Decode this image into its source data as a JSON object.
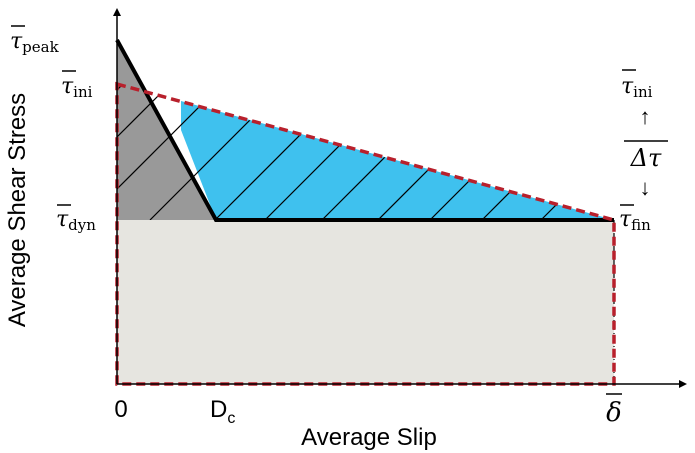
{
  "axes": {
    "xlabel": "Average Slip",
    "ylabel": "Average Shear Stress"
  },
  "ticks": {
    "zero": "0",
    "dc_main": "D",
    "dc_sub": "c",
    "delta": "δ"
  },
  "stress_labels": {
    "tau": "τ",
    "peak_sub": "peak",
    "ini_sub": "ini",
    "dyn_sub": "dyn",
    "fin_sub": "fin",
    "delta_tau": "Δτ",
    "up_arrow": "↑",
    "down_arrow": "↓"
  },
  "colors": {
    "gray_region": "#999999",
    "blue_region": "#3fc1ee",
    "light_region": "#e6e5e0",
    "dashed_red": "#b8202c",
    "black": "#000000"
  }
}
